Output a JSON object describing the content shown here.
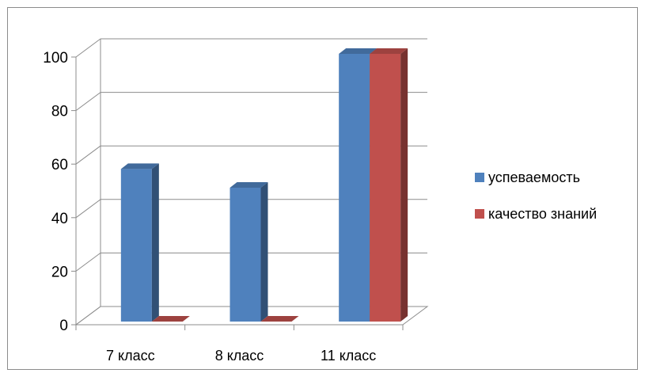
{
  "chart_data": {
    "type": "bar",
    "categories": [
      "7 класс",
      "8 класс",
      "11 класс"
    ],
    "series": [
      {
        "name": "успеваемость",
        "values": [
          57,
          50,
          100
        ],
        "color": "#4F81BD"
      },
      {
        "name": "качество знаний",
        "values": [
          0,
          0,
          100
        ],
        "color": "#C0504D"
      }
    ],
    "ylim": [
      0,
      100
    ],
    "yticks": [
      0,
      20,
      40,
      60,
      80,
      100
    ],
    "grid": true,
    "legend_position": "right",
    "style": "3d-clustered-column"
  }
}
